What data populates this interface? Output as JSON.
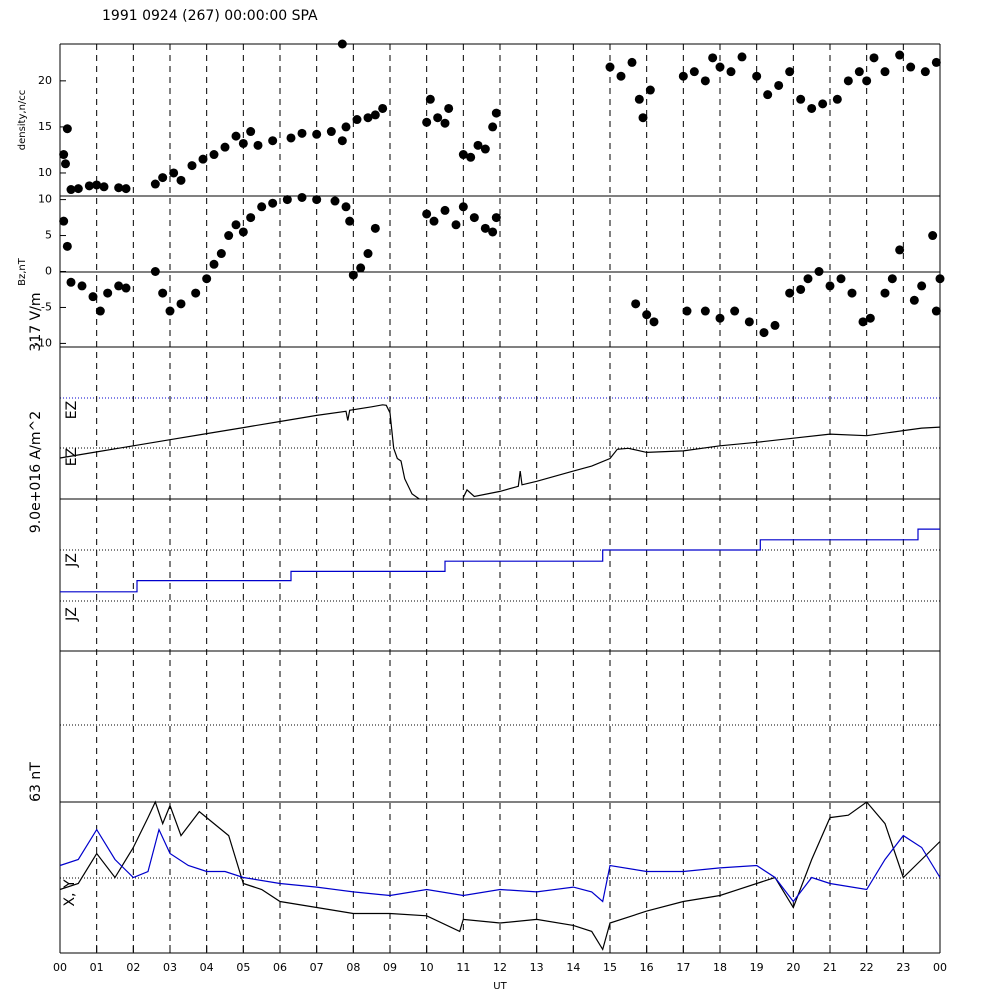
{
  "chart_data": [
    {
      "type": "scatter",
      "title": "1991 0924 (267) 00:00:00 SPA",
      "ylabel": "density,n/cc",
      "color": "#000000",
      "xlim": [
        0,
        24
      ],
      "ylim": [
        7.5,
        24
      ],
      "yticks": [
        10,
        15,
        20
      ],
      "x": [
        0.1,
        0.15,
        0.2,
        0.3,
        0.5,
        0.8,
        1.0,
        1.2,
        1.6,
        1.8,
        2.6,
        2.8,
        3.1,
        3.3,
        3.6,
        3.9,
        4.2,
        4.5,
        4.8,
        5.0,
        5.2,
        5.4,
        5.8,
        6.3,
        6.6,
        7.0,
        7.4,
        7.7,
        7.8,
        8.1,
        8.4,
        8.6,
        8.8,
        7.7,
        10.0,
        10.1,
        10.3,
        10.5,
        10.6,
        11.0,
        11.2,
        11.4,
        11.6,
        11.8,
        11.9,
        15.0,
        15.3,
        15.6,
        15.8,
        15.9,
        16.1,
        17.0,
        17.3,
        17.6,
        17.8,
        18.0,
        18.3,
        18.6,
        19.0,
        19.3,
        19.6,
        19.9,
        20.2,
        20.5,
        20.8,
        21.2,
        21.5,
        21.8,
        22.0,
        22.2,
        22.5,
        22.9,
        23.2,
        23.6,
        23.9
      ],
      "values": [
        12,
        11,
        14.8,
        8.2,
        8.3,
        8.6,
        8.7,
        8.5,
        8.4,
        8.3,
        8.8,
        9.5,
        10,
        9.2,
        10.8,
        11.5,
        12,
        12.8,
        14,
        13.2,
        14.5,
        13,
        13.5,
        13.8,
        14.3,
        14.2,
        14.5,
        13.5,
        15,
        15.8,
        16,
        16.3,
        17,
        24,
        15.5,
        18,
        16,
        15.4,
        17,
        12,
        11.7,
        13,
        12.6,
        15,
        16.5,
        21.5,
        20.5,
        22,
        18,
        16,
        19,
        20.5,
        21,
        20,
        22.5,
        21.5,
        21,
        22.6,
        20.5,
        18.5,
        19.5,
        21,
        18,
        17,
        17.5,
        18,
        20,
        21,
        20,
        22.5,
        21,
        22.8,
        21.5,
        21,
        22
      ]
    },
    {
      "type": "scatter",
      "ylabel": "Bz,nT",
      "color": "#000000",
      "xlim": [
        0,
        24
      ],
      "ylim": [
        -10.5,
        10.5
      ],
      "yticks": [
        -10,
        -5,
        0,
        5,
        10
      ],
      "x": [
        0.1,
        0.2,
        0.3,
        0.6,
        0.9,
        1.1,
        1.3,
        1.6,
        1.8,
        2.6,
        2.8,
        3.0,
        3.3,
        3.7,
        4.0,
        4.2,
        4.4,
        4.6,
        4.8,
        5.0,
        5.2,
        5.5,
        5.8,
        6.2,
        6.6,
        7.0,
        7.5,
        7.8,
        7.9,
        8.0,
        8.2,
        8.4,
        8.6,
        10.0,
        10.2,
        10.5,
        10.8,
        11.0,
        11.3,
        11.6,
        11.9,
        11.8,
        15.7,
        16.0,
        16.2,
        17.1,
        17.6,
        18.0,
        18.4,
        18.8,
        19.2,
        19.5,
        19.9,
        20.2,
        20.4,
        20.7,
        21.0,
        21.3,
        21.6,
        21.9,
        22.1,
        22.5,
        22.7,
        22.9,
        23.3,
        23.5,
        23.8,
        24.0,
        23.9
      ],
      "values": [
        7,
        3.5,
        -1.5,
        -2,
        -3.5,
        -5.5,
        -3,
        -2,
        -2.3,
        0,
        -3,
        -5.5,
        -4.5,
        -3,
        -1,
        1,
        2.5,
        5,
        6.5,
        5.5,
        7.5,
        9,
        9.5,
        10,
        10.3,
        10,
        9.8,
        9,
        7,
        -0.5,
        0.5,
        2.5,
        6,
        8,
        7,
        8.5,
        6.5,
        9,
        7.5,
        6,
        7.5,
        5.5,
        -4.5,
        -6,
        -7,
        -5.5,
        -5.5,
        -6.5,
        -5.5,
        -7,
        -8.5,
        -7.5,
        -3,
        -2.5,
        -1,
        0,
        -2,
        -1,
        -3,
        -7,
        -6.5,
        -3,
        -1,
        3,
        -4,
        -2,
        5,
        -1,
        -5.5
      ]
    },
    {
      "type": "line",
      "ylabel": "317 V/m",
      "labels": [
        "EZ",
        "EZ"
      ],
      "color": "#000000",
      "xlim": [
        0,
        24
      ],
      "ylim": [
        0,
        3
      ],
      "x": [
        0,
        1,
        2,
        3,
        4,
        5,
        6,
        7,
        7.8,
        7.85,
        7.9,
        8.5,
        8.8,
        8.9,
        9.0,
        9.1,
        9.2,
        9.3,
        9.4,
        9.6,
        9.8,
        null,
        11.0,
        11.1,
        11.3,
        12,
        12.5,
        12.55,
        12.6,
        13,
        14,
        14.5,
        15,
        15.2,
        15.5,
        16,
        17,
        18,
        19,
        20,
        21,
        22,
        23,
        23.5,
        24
      ],
      "values": [
        0.81,
        0.93,
        1.05,
        1.17,
        1.29,
        1.41,
        1.53,
        1.65,
        1.73,
        1.55,
        1.75,
        1.82,
        1.86,
        1.85,
        1.7,
        1.0,
        0.8,
        0.75,
        0.4,
        0.1,
        0.0,
        null,
        0.03,
        0.18,
        0.05,
        0.15,
        0.25,
        0.55,
        0.28,
        0.35,
        0.55,
        0.65,
        0.8,
        0.98,
        1.0,
        0.92,
        0.95,
        1.05,
        1.12,
        1.2,
        1.28,
        1.25,
        1.35,
        1.4,
        1.42
      ]
    },
    {
      "type": "line",
      "ylabel": "9.0e+016 A/m^2",
      "labels": [
        "JZ",
        "JZ"
      ],
      "color": "#0000cc",
      "xlim": [
        0,
        24
      ],
      "ylim": [
        0,
        2
      ],
      "x": [
        0,
        2.1,
        2.1,
        6.3,
        6.3,
        10.5,
        10.5,
        14.8,
        14.8,
        19.1,
        19.1,
        23.4,
        23.4,
        24
      ],
      "values": [
        0.18,
        0.18,
        0.4,
        0.4,
        0.58,
        0.58,
        0.78,
        0.78,
        1.0,
        1.0,
        1.2,
        1.2,
        1.41,
        1.41
      ]
    },
    {
      "type": "line",
      "ylabel": "63 nT",
      "labels": [
        "X, Y"
      ],
      "xlabel": "UT",
      "xlim": [
        0,
        24
      ],
      "ylim": [
        -63,
        63
      ],
      "xticks": [
        {
          "value": 0,
          "label": "00"
        },
        {
          "value": 1,
          "label": "01"
        },
        {
          "value": 2,
          "label": "02"
        },
        {
          "value": 3,
          "label": "03"
        },
        {
          "value": 4,
          "label": "04"
        },
        {
          "value": 5,
          "label": "05"
        },
        {
          "value": 6,
          "label": "06"
        },
        {
          "value": 7,
          "label": "07"
        },
        {
          "value": 8,
          "label": "08"
        },
        {
          "value": 9,
          "label": "09"
        },
        10,
        11,
        12,
        13,
        14,
        15,
        16,
        17,
        18,
        19,
        20,
        21,
        22,
        23,
        {
          "value": 24,
          "label": "00"
        }
      ],
      "series": [
        {
          "color": "#000000",
          "x": [
            0,
            0.5,
            1,
            1.5,
            2,
            2.4,
            2.6,
            2.8,
            3,
            3.3,
            3.8,
            4.2,
            4.6,
            5,
            5.5,
            6,
            7,
            8,
            9,
            10,
            10.9,
            11,
            12,
            13,
            14,
            14.5,
            14.8,
            15,
            16,
            17,
            18,
            19,
            19.5,
            20,
            20.5,
            21,
            21.5,
            22,
            22.5,
            23,
            23.5,
            24
          ],
          "values": [
            -10,
            -5,
            20,
            0,
            25,
            50,
            63,
            45,
            60,
            35,
            55,
            45,
            35,
            -5,
            -10,
            -20,
            -25,
            -30,
            -30,
            -32,
            -45,
            -35,
            -38,
            -35,
            -40,
            -45,
            -60,
            -38,
            -28,
            -20,
            -15,
            -5,
            0,
            -25,
            15,
            50,
            52,
            63,
            45,
            0,
            15,
            30
          ]
        },
        {
          "color": "#0000cc",
          "x": [
            0,
            0.5,
            1,
            1.5,
            2,
            2.4,
            2.7,
            3,
            3.5,
            4,
            4.5,
            5,
            6,
            7,
            8,
            9,
            10,
            11,
            12,
            13,
            14,
            14.5,
            14.8,
            15,
            16,
            17,
            18,
            19,
            19.5,
            20,
            20.5,
            21,
            22,
            22.5,
            23,
            23.5,
            24
          ],
          "values": [
            10,
            15,
            40,
            15,
            0,
            5,
            40,
            20,
            10,
            5,
            5,
            0,
            -5,
            -8,
            -12,
            -15,
            -10,
            -15,
            -10,
            -12,
            -8,
            -12,
            -20,
            10,
            5,
            5,
            8,
            10,
            0,
            -20,
            0,
            -5,
            -10,
            15,
            35,
            25,
            0
          ]
        }
      ]
    }
  ]
}
